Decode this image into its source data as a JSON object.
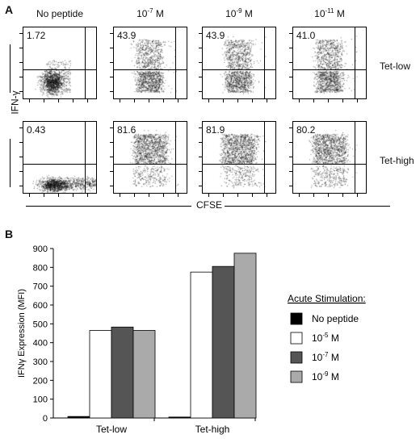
{
  "panel_a": {
    "label": "A",
    "columns": [
      "No peptide",
      "10-7 M",
      "10-9 M",
      "10-11 M"
    ],
    "column_html": [
      "No peptide",
      "10<sup>-7</sup> M",
      "10<sup>-9</sup> M",
      "10<sup>-11</sup> M"
    ],
    "rows": [
      {
        "label": "Tet-low",
        "percents": [
          "1.72",
          "43.9",
          "43.9",
          "41.0"
        ]
      },
      {
        "label": "Tet-high",
        "percents": [
          "0.43",
          "81.6",
          "81.9",
          "80.2"
        ]
      }
    ],
    "ylabel": "IFN-γ",
    "xlabel": "CFSE"
  },
  "panel_b": {
    "label": "B",
    "legend_title": "Acute Stimulation:",
    "legend_items": [
      {
        "label": "No peptide",
        "html": "No peptide",
        "color": "#000000"
      },
      {
        "label": "10-5 M",
        "html": "10<sup>-5</sup> M",
        "color": "#ffffff"
      },
      {
        "label": "10-7 M",
        "html": "10<sup>-7</sup> M",
        "color": "#555555"
      },
      {
        "label": "10-9 M",
        "html": "10<sup>-9</sup> M",
        "color": "#aaaaaa"
      }
    ]
  },
  "chart_data": {
    "type": "bar",
    "categories": [
      "Tet-low",
      "Tet-high"
    ],
    "series": [
      {
        "name": "No peptide",
        "values": [
          8,
          5
        ]
      },
      {
        "name": "10-5 M",
        "values": [
          465,
          775
        ]
      },
      {
        "name": "10-7 M",
        "values": [
          483,
          805
        ]
      },
      {
        "name": "10-9 M",
        "values": [
          465,
          875
        ]
      }
    ],
    "title": "",
    "xlabel": "",
    "ylabel": "IFNγ Expression (MFI)",
    "ylim": [
      0,
      900
    ],
    "yticks": [
      0,
      100,
      200,
      300,
      400,
      500,
      600,
      700,
      800,
      900
    ],
    "grid": false,
    "legend": "right"
  }
}
